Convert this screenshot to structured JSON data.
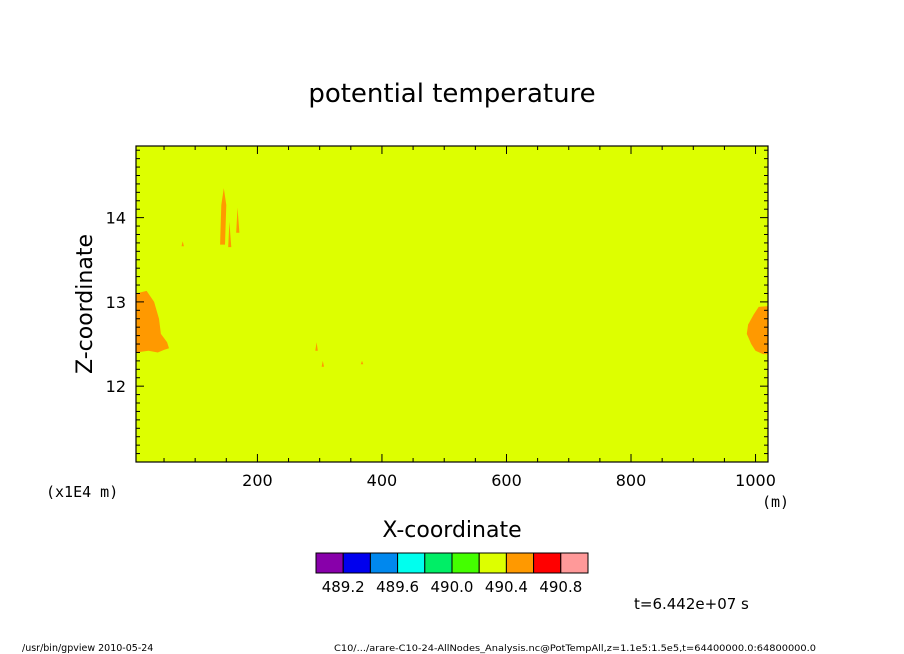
{
  "chart_data": {
    "type": "heatmap",
    "title": "potential temperature",
    "xlabel": "X-coordinate",
    "ylabel": "Z-coordinate",
    "x_unit": "(m)",
    "y_unit": "(x1E4 m)",
    "xlim": [
      5,
      1020
    ],
    "ylim": [
      11.1,
      14.85
    ],
    "x_ticks": [
      200,
      400,
      600,
      800,
      1000
    ],
    "y_ticks": [
      12,
      13,
      14
    ],
    "x_tick_labels": [
      "200",
      "400",
      "600",
      "800",
      "1000"
    ],
    "y_tick_labels": [
      "12",
      "13",
      "14"
    ],
    "background_color": "#ddff00",
    "colorbar": {
      "colors": [
        "#8800aa",
        "#0000ee",
        "#0088ee",
        "#00ffee",
        "#00ee66",
        "#44ff00",
        "#ddff00",
        "#ff9900",
        "#ff0000",
        "#ff9999"
      ],
      "tick_labels": [
        "489.2",
        "489.6",
        "490.0",
        "490.4",
        "490.8"
      ]
    },
    "regions": [
      {
        "color": "#ff9900",
        "points": [
          [
            5,
            13.1
          ],
          [
            22,
            13.13
          ],
          [
            34,
            13.0
          ],
          [
            42,
            12.8
          ],
          [
            45,
            12.62
          ],
          [
            55,
            12.52
          ],
          [
            58,
            12.45
          ],
          [
            50,
            12.43
          ],
          [
            40,
            12.4
          ],
          [
            25,
            12.42
          ],
          [
            5,
            12.4
          ]
        ]
      },
      {
        "color": "#ff9900",
        "points": [
          [
            1020,
            12.95
          ],
          [
            1005,
            12.94
          ],
          [
            997,
            12.85
          ],
          [
            988,
            12.73
          ],
          [
            986,
            12.62
          ],
          [
            993,
            12.5
          ],
          [
            1000,
            12.42
          ],
          [
            1012,
            12.38
          ],
          [
            1020,
            12.38
          ]
        ]
      },
      {
        "color": "#ff9900",
        "points": [
          [
            140,
            13.68
          ],
          [
            142,
            14.15
          ],
          [
            146,
            14.35
          ],
          [
            150,
            14.15
          ],
          [
            148,
            13.68
          ]
        ]
      },
      {
        "color": "#ff9900",
        "points": [
          [
            153,
            13.65
          ],
          [
            155,
            13.95
          ],
          [
            158,
            13.65
          ]
        ]
      },
      {
        "color": "#ff9900",
        "points": [
          [
            166,
            13.82
          ],
          [
            168,
            14.12
          ],
          [
            171,
            13.82
          ]
        ]
      },
      {
        "color": "#ff9900",
        "points": [
          [
            78,
            13.66
          ],
          [
            80,
            13.72
          ],
          [
            82,
            13.66
          ]
        ]
      },
      {
        "color": "#ff9900",
        "points": [
          [
            293,
            12.42
          ],
          [
            295,
            12.52
          ],
          [
            297,
            12.42
          ]
        ]
      },
      {
        "color": "#ff9900",
        "points": [
          [
            303,
            12.23
          ],
          [
            305,
            12.3
          ],
          [
            307,
            12.23
          ]
        ]
      },
      {
        "color": "#ff9900",
        "points": [
          [
            366,
            12.26
          ],
          [
            368,
            12.3
          ],
          [
            370,
            12.26
          ]
        ]
      }
    ]
  },
  "time_label": "t=6.442e+07 s",
  "footer": {
    "left": "/usr/bin/gpview  2010-05-24",
    "right": "C10/.../arare-C10-24-AllNodes_Analysis.nc@PotTempAll,z=1.1e5:1.5e5,t=64400000.0:64800000.0"
  }
}
